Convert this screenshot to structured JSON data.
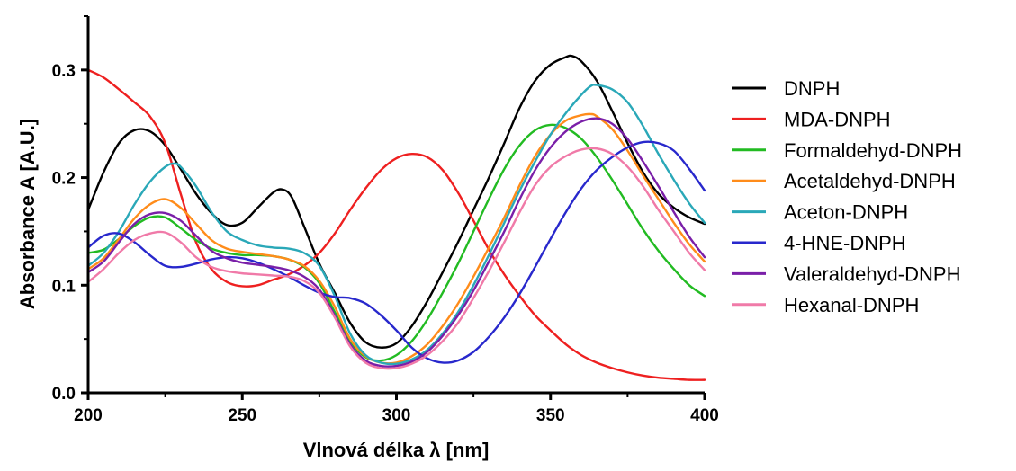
{
  "chart_data": {
    "type": "line",
    "xlabel": "Vlnová délka λ [nm]",
    "ylabel": "Absorbance A [A.U.]",
    "xlim": [
      200,
      400
    ],
    "ylim": [
      0,
      0.35
    ],
    "xticks": [
      200,
      250,
      300,
      350,
      400
    ],
    "xtick_labels": [
      "200",
      "250",
      "300",
      "350",
      "400"
    ],
    "yticks": [
      0,
      0.1,
      0.2,
      0.3
    ],
    "ytick_labels": [
      "0.0",
      "0.1",
      "0.2",
      "0.3"
    ],
    "grid": false,
    "legend_position": "right",
    "series": [
      {
        "name": "DNPH",
        "color": "#000000",
        "x": [
          200,
          205,
          210,
          215,
          220,
          225,
          230,
          235,
          240,
          245,
          250,
          255,
          260,
          263,
          266,
          270,
          275,
          280,
          285,
          290,
          295,
          300,
          305,
          310,
          315,
          320,
          325,
          330,
          335,
          340,
          345,
          350,
          355,
          357,
          360,
          365,
          370,
          375,
          380,
          385,
          390,
          395,
          400
        ],
        "y": [
          0.17,
          0.205,
          0.232,
          0.244,
          0.243,
          0.23,
          0.208,
          0.185,
          0.167,
          0.156,
          0.158,
          0.172,
          0.186,
          0.189,
          0.182,
          0.155,
          0.12,
          0.093,
          0.065,
          0.047,
          0.042,
          0.046,
          0.062,
          0.085,
          0.112,
          0.14,
          0.17,
          0.2,
          0.232,
          0.265,
          0.29,
          0.305,
          0.312,
          0.313,
          0.308,
          0.29,
          0.262,
          0.232,
          0.205,
          0.185,
          0.172,
          0.163,
          0.157
        ]
      },
      {
        "name": "MDA-DNPH",
        "color": "#ee2020",
        "x": [
          200,
          205,
          210,
          215,
          220,
          225,
          230,
          235,
          240,
          245,
          250,
          255,
          260,
          265,
          270,
          275,
          280,
          285,
          290,
          295,
          300,
          305,
          310,
          315,
          320,
          325,
          330,
          335,
          340,
          345,
          350,
          355,
          360,
          365,
          370,
          375,
          380,
          385,
          390,
          395,
          400
        ],
        "y": [
          0.3,
          0.293,
          0.282,
          0.27,
          0.257,
          0.232,
          0.185,
          0.14,
          0.115,
          0.103,
          0.099,
          0.1,
          0.105,
          0.11,
          0.118,
          0.13,
          0.148,
          0.17,
          0.19,
          0.207,
          0.218,
          0.222,
          0.219,
          0.207,
          0.186,
          0.16,
          0.133,
          0.11,
          0.09,
          0.072,
          0.058,
          0.045,
          0.035,
          0.028,
          0.023,
          0.019,
          0.016,
          0.014,
          0.013,
          0.012,
          0.012
        ]
      },
      {
        "name": "Formaldehyd-DNPH",
        "color": "#22bb22",
        "x": [
          200,
          205,
          210,
          215,
          220,
          225,
          230,
          235,
          240,
          245,
          250,
          255,
          260,
          265,
          270,
          275,
          280,
          285,
          290,
          295,
          300,
          305,
          310,
          315,
          320,
          325,
          330,
          335,
          340,
          345,
          350,
          355,
          360,
          365,
          370,
          375,
          380,
          385,
          390,
          395,
          400
        ],
        "y": [
          0.13,
          0.133,
          0.143,
          0.155,
          0.163,
          0.163,
          0.153,
          0.142,
          0.134,
          0.13,
          0.128,
          0.128,
          0.127,
          0.124,
          0.117,
          0.102,
          0.075,
          0.048,
          0.033,
          0.03,
          0.035,
          0.048,
          0.068,
          0.093,
          0.12,
          0.15,
          0.18,
          0.208,
          0.23,
          0.244,
          0.249,
          0.246,
          0.236,
          0.219,
          0.198,
          0.175,
          0.152,
          0.132,
          0.115,
          0.1,
          0.09
        ]
      },
      {
        "name": "Acetaldehyd-DNPH",
        "color": "#ff8c1a",
        "x": [
          200,
          205,
          210,
          215,
          220,
          225,
          230,
          235,
          240,
          245,
          250,
          255,
          260,
          265,
          270,
          275,
          280,
          285,
          290,
          295,
          300,
          305,
          310,
          315,
          320,
          325,
          330,
          335,
          340,
          345,
          350,
          355,
          360,
          363,
          365,
          370,
          375,
          380,
          385,
          390,
          395,
          400
        ],
        "y": [
          0.115,
          0.125,
          0.143,
          0.162,
          0.175,
          0.18,
          0.172,
          0.157,
          0.142,
          0.134,
          0.131,
          0.129,
          0.127,
          0.124,
          0.118,
          0.104,
          0.08,
          0.05,
          0.034,
          0.028,
          0.028,
          0.034,
          0.045,
          0.062,
          0.083,
          0.108,
          0.135,
          0.163,
          0.193,
          0.22,
          0.24,
          0.253,
          0.258,
          0.259,
          0.257,
          0.245,
          0.225,
          0.202,
          0.18,
          0.158,
          0.138,
          0.122
        ]
      },
      {
        "name": "Aceton-DNPH",
        "color": "#2aa8b8",
        "x": [
          200,
          205,
          210,
          215,
          220,
          225,
          228,
          230,
          235,
          240,
          245,
          250,
          255,
          260,
          265,
          270,
          275,
          280,
          285,
          290,
          295,
          300,
          305,
          310,
          315,
          320,
          325,
          330,
          335,
          340,
          345,
          350,
          355,
          360,
          363,
          365,
          370,
          375,
          380,
          385,
          390,
          395,
          400
        ],
        "y": [
          0.118,
          0.13,
          0.15,
          0.175,
          0.196,
          0.21,
          0.213,
          0.21,
          0.192,
          0.168,
          0.15,
          0.142,
          0.137,
          0.135,
          0.134,
          0.13,
          0.118,
          0.09,
          0.055,
          0.035,
          0.028,
          0.027,
          0.031,
          0.04,
          0.055,
          0.075,
          0.1,
          0.128,
          0.158,
          0.188,
          0.215,
          0.24,
          0.26,
          0.277,
          0.285,
          0.286,
          0.282,
          0.27,
          0.248,
          0.222,
          0.198,
          0.176,
          0.158
        ]
      },
      {
        "name": "4-HNE-DNPH",
        "color": "#2828cc",
        "x": [
          200,
          205,
          210,
          215,
          220,
          225,
          230,
          235,
          240,
          245,
          250,
          255,
          260,
          265,
          270,
          275,
          280,
          285,
          290,
          295,
          300,
          305,
          310,
          315,
          320,
          325,
          330,
          335,
          340,
          345,
          350,
          355,
          360,
          365,
          370,
          375,
          380,
          385,
          390,
          395,
          400
        ],
        "y": [
          0.135,
          0.146,
          0.148,
          0.14,
          0.128,
          0.118,
          0.117,
          0.12,
          0.124,
          0.126,
          0.125,
          0.121,
          0.115,
          0.108,
          0.1,
          0.093,
          0.089,
          0.088,
          0.083,
          0.072,
          0.058,
          0.042,
          0.032,
          0.028,
          0.03,
          0.038,
          0.052,
          0.07,
          0.092,
          0.117,
          0.143,
          0.168,
          0.19,
          0.207,
          0.219,
          0.228,
          0.233,
          0.232,
          0.225,
          0.208,
          0.188
        ]
      },
      {
        "name": "Valeraldehyd-DNPH",
        "color": "#7a1fa8",
        "x": [
          200,
          205,
          210,
          215,
          220,
          225,
          230,
          235,
          240,
          245,
          250,
          255,
          260,
          265,
          270,
          275,
          280,
          285,
          290,
          295,
          300,
          305,
          310,
          315,
          320,
          325,
          330,
          335,
          340,
          345,
          350,
          355,
          360,
          365,
          370,
          375,
          380,
          385,
          390,
          395,
          400
        ],
        "y": [
          0.112,
          0.122,
          0.14,
          0.157,
          0.166,
          0.167,
          0.16,
          0.146,
          0.132,
          0.125,
          0.121,
          0.119,
          0.117,
          0.114,
          0.108,
          0.096,
          0.072,
          0.045,
          0.03,
          0.025,
          0.025,
          0.029,
          0.038,
          0.053,
          0.072,
          0.095,
          0.122,
          0.15,
          0.18,
          0.207,
          0.228,
          0.243,
          0.252,
          0.255,
          0.25,
          0.236,
          0.215,
          0.192,
          0.168,
          0.145,
          0.126
        ]
      },
      {
        "name": "Hexanal-DNPH",
        "color": "#f07aa8",
        "x": [
          200,
          205,
          210,
          215,
          220,
          225,
          230,
          235,
          240,
          245,
          250,
          255,
          260,
          265,
          270,
          275,
          280,
          285,
          290,
          295,
          300,
          305,
          310,
          315,
          320,
          325,
          330,
          335,
          340,
          345,
          350,
          355,
          360,
          365,
          370,
          375,
          380,
          385,
          390,
          395,
          400
        ],
        "y": [
          0.103,
          0.115,
          0.13,
          0.142,
          0.148,
          0.149,
          0.14,
          0.126,
          0.117,
          0.113,
          0.111,
          0.11,
          0.109,
          0.108,
          0.104,
          0.093,
          0.07,
          0.043,
          0.028,
          0.023,
          0.023,
          0.027,
          0.035,
          0.048,
          0.065,
          0.088,
          0.113,
          0.14,
          0.168,
          0.193,
          0.21,
          0.22,
          0.226,
          0.227,
          0.222,
          0.21,
          0.192,
          0.17,
          0.15,
          0.13,
          0.114
        ]
      }
    ]
  }
}
